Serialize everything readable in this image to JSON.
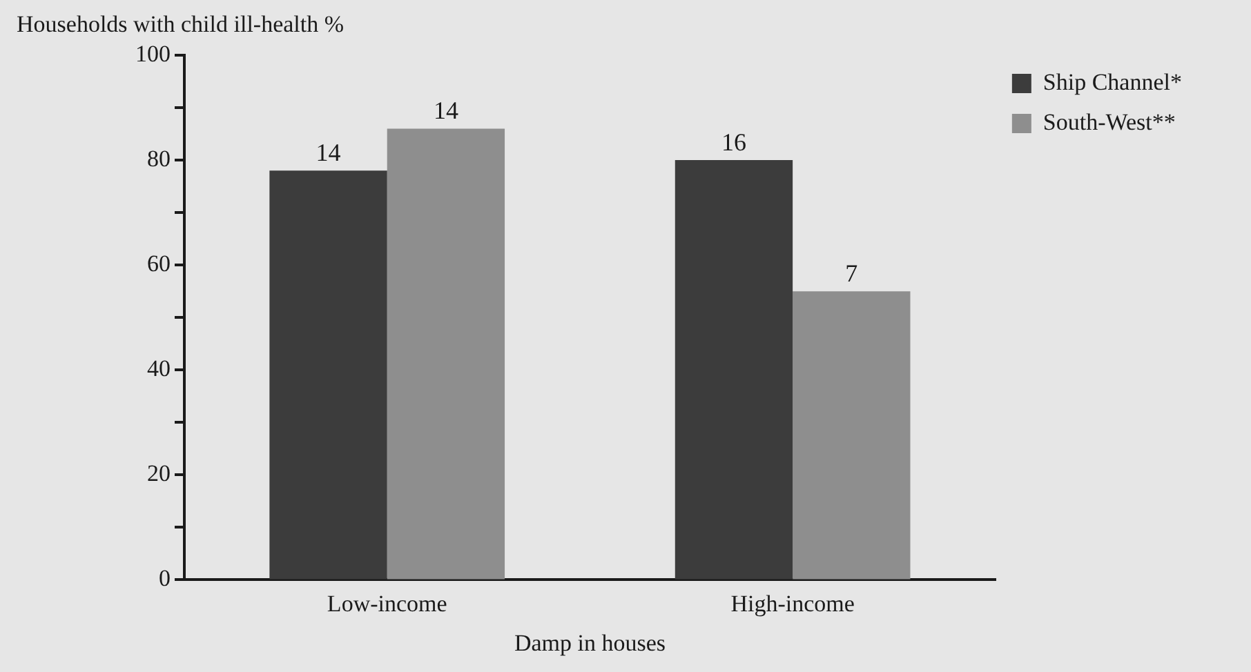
{
  "chart_data": {
    "type": "bar",
    "ylabel": "Households with child ill-health %",
    "xlabel": "Damp in houses",
    "categories": [
      "Low-income",
      "High-income"
    ],
    "series": [
      {
        "name": "Ship Channel*",
        "color": "#3c3c3c",
        "values": [
          78,
          80
        ]
      },
      {
        "name": "South-West**",
        "color": "#8e8e8e",
        "values": [
          86,
          55
        ]
      }
    ],
    "annotations": [
      {
        "text": "14",
        "x": "Low-income",
        "y": 78
      },
      {
        "text": "14",
        "x": "Low-income",
        "y": 86
      },
      {
        "text": "16",
        "x": "High-income",
        "y": 80
      },
      {
        "text": "7",
        "x": "High-income",
        "y": 55
      }
    ],
    "ylim": [
      0,
      100
    ],
    "yticks": [
      0,
      {
        "value": 10,
        "label": null
      },
      20,
      {
        "value": 30,
        "label": null
      },
      40,
      {
        "value": 50,
        "label": null
      },
      60,
      {
        "value": 70,
        "label": null
      },
      80,
      {
        "value": 90,
        "label": null
      },
      100
    ],
    "grid": false,
    "legend": "top right"
  }
}
